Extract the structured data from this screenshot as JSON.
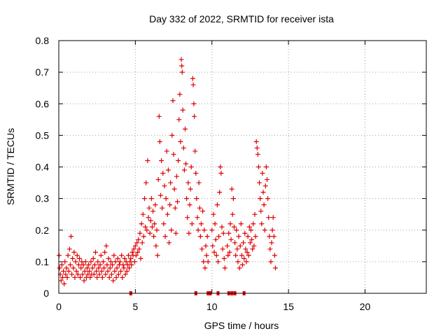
{
  "chart_data": {
    "type": "scatter",
    "title": "Day 332 of 2022, SRMTID for receiver ista",
    "xlabel": "GPS time / hours",
    "ylabel": "SRMTID / TECUs",
    "xlim": [
      0,
      24
    ],
    "ylim": [
      0,
      0.8
    ],
    "xticks": [
      0,
      5,
      10,
      15,
      20
    ],
    "yticks": [
      0,
      0.1,
      0.2,
      0.3,
      0.4,
      0.5,
      0.6,
      0.7,
      0.8
    ],
    "grid": true,
    "marker": "+",
    "color": "#e00000",
    "series": [
      {
        "name": "ista",
        "points": [
          [
            0.02,
            0.12
          ],
          [
            0.05,
            0.08
          ],
          [
            0.1,
            0.06
          ],
          [
            0.15,
            0.04
          ],
          [
            0.2,
            0.09
          ],
          [
            0.25,
            0.05
          ],
          [
            0.3,
            0.07
          ],
          [
            0.35,
            0.03
          ],
          [
            0.4,
            0.1
          ],
          [
            0.45,
            0.06
          ],
          [
            0.5,
            0.08
          ],
          [
            0.55,
            0.05
          ],
          [
            0.6,
            0.12
          ],
          [
            0.65,
            0.07
          ],
          [
            0.7,
            0.14
          ],
          [
            0.75,
            0.09
          ],
          [
            0.8,
            0.18
          ],
          [
            0.85,
            0.06
          ],
          [
            0.9,
            0.11
          ],
          [
            0.95,
            0.08
          ],
          [
            1.0,
            0.13
          ],
          [
            1.05,
            0.05
          ],
          [
            1.1,
            0.1
          ],
          [
            1.15,
            0.07
          ],
          [
            1.2,
            0.12
          ],
          [
            1.25,
            0.06
          ],
          [
            1.3,
            0.09
          ],
          [
            1.35,
            0.11
          ],
          [
            1.4,
            0.05
          ],
          [
            1.45,
            0.08
          ],
          [
            1.5,
            0.1
          ],
          [
            1.55,
            0.06
          ],
          [
            1.6,
            0.09
          ],
          [
            1.65,
            0.04
          ],
          [
            1.7,
            0.07
          ],
          [
            1.75,
            0.1
          ],
          [
            1.8,
            0.05
          ],
          [
            1.85,
            0.08
          ],
          [
            1.9,
            0.06
          ],
          [
            1.95,
            0.09
          ],
          [
            2.0,
            0.07
          ],
          [
            2.05,
            0.05
          ],
          [
            2.1,
            0.1
          ],
          [
            2.15,
            0.06
          ],
          [
            2.2,
            0.08
          ],
          [
            2.25,
            0.11
          ],
          [
            2.3,
            0.06
          ],
          [
            2.35,
            0.09
          ],
          [
            2.4,
            0.13
          ],
          [
            2.45,
            0.07
          ],
          [
            2.5,
            0.05
          ],
          [
            2.55,
            0.1
          ],
          [
            2.6,
            0.08
          ],
          [
            2.65,
            0.06
          ],
          [
            2.7,
            0.09
          ],
          [
            2.75,
            0.12
          ],
          [
            2.8,
            0.07
          ],
          [
            2.85,
            0.05
          ],
          [
            2.9,
            0.1
          ],
          [
            2.95,
            0.08
          ],
          [
            3.0,
            0.13
          ],
          [
            3.05,
            0.06
          ],
          [
            3.1,
            0.15
          ],
          [
            3.15,
            0.09
          ],
          [
            3.2,
            0.07
          ],
          [
            3.25,
            0.11
          ],
          [
            3.3,
            0.05
          ],
          [
            3.35,
            0.08
          ],
          [
            3.4,
            0.1
          ],
          [
            3.45,
            0.06
          ],
          [
            3.5,
            0.09
          ],
          [
            3.55,
            0.04
          ],
          [
            3.6,
            0.12
          ],
          [
            3.65,
            0.07
          ],
          [
            3.7,
            0.1
          ],
          [
            3.75,
            0.05
          ],
          [
            3.8,
            0.08
          ],
          [
            3.85,
            0.11
          ],
          [
            3.9,
            0.06
          ],
          [
            3.95,
            0.09
          ],
          [
            4.0,
            0.1
          ],
          [
            4.05,
            0.07
          ],
          [
            4.1,
            0.12
          ],
          [
            4.15,
            0.05
          ],
          [
            4.2,
            0.09
          ],
          [
            4.25,
            0.08
          ],
          [
            4.3,
            0.11
          ],
          [
            4.35,
            0.06
          ],
          [
            4.4,
            0.1
          ],
          [
            4.45,
            0.07
          ],
          [
            4.5,
            0.09
          ],
          [
            4.55,
            0.12
          ],
          [
            4.6,
            0.08
          ],
          [
            4.65,
            0.1
          ],
          [
            4.7,
            0.11
          ],
          [
            4.75,
            0.09
          ],
          [
            4.8,
            0.13
          ],
          [
            4.85,
            0.12
          ],
          [
            4.9,
            0.14
          ],
          [
            4.95,
            0.1
          ],
          [
            5.0,
            0.15
          ],
          [
            5.05,
            0.12
          ],
          [
            5.1,
            0.16
          ],
          [
            5.15,
            0.13
          ],
          [
            5.2,
            0.17
          ],
          [
            5.25,
            0.14
          ],
          [
            5.3,
            0.19
          ],
          [
            5.35,
            0.11
          ],
          [
            5.4,
            0.22
          ],
          [
            5.45,
            0.16
          ],
          [
            5.5,
            0.25
          ],
          [
            5.55,
            0.18
          ],
          [
            5.6,
            0.3
          ],
          [
            5.65,
            0.21
          ],
          [
            5.7,
            0.35
          ],
          [
            5.75,
            0.2
          ],
          [
            5.8,
            0.42
          ],
          [
            5.85,
            0.24
          ],
          [
            5.9,
            0.27
          ],
          [
            5.95,
            0.19
          ],
          [
            6.0,
            0.23
          ],
          [
            6.05,
            0.3
          ],
          [
            6.1,
            0.21
          ],
          [
            6.15,
            0.26
          ],
          [
            6.2,
            0.18
          ],
          [
            6.25,
            0.22
          ],
          [
            6.3,
            0.28
          ],
          [
            6.35,
            0.15
          ],
          [
            6.4,
            0.2
          ],
          [
            6.45,
            0.12
          ],
          [
            6.5,
            0.36
          ],
          [
            6.55,
            0.56
          ],
          [
            6.6,
            0.48
          ],
          [
            6.65,
            0.31
          ],
          [
            6.7,
            0.42
          ],
          [
            6.75,
            0.27
          ],
          [
            6.8,
            0.38
          ],
          [
            6.85,
            0.22
          ],
          [
            6.9,
            0.34
          ],
          [
            6.95,
            0.18
          ],
          [
            7.0,
            0.3
          ],
          [
            7.05,
            0.45
          ],
          [
            7.1,
            0.25
          ],
          [
            7.15,
            0.39
          ],
          [
            7.2,
            0.16
          ],
          [
            7.25,
            0.28
          ],
          [
            7.3,
            0.35
          ],
          [
            7.35,
            0.2
          ],
          [
            7.4,
            0.5
          ],
          [
            7.45,
            0.61
          ],
          [
            7.5,
            0.44
          ],
          [
            7.55,
            0.33
          ],
          [
            7.6,
            0.27
          ],
          [
            7.65,
            0.19
          ],
          [
            7.7,
            0.37
          ],
          [
            7.75,
            0.29
          ],
          [
            7.8,
            0.42
          ],
          [
            7.85,
            0.55
          ],
          [
            7.9,
            0.63
          ],
          [
            7.95,
            0.48
          ],
          [
            8.0,
            0.74
          ],
          [
            8.03,
            0.72
          ],
          [
            8.06,
            0.7
          ],
          [
            8.1,
            0.58
          ],
          [
            8.15,
            0.46
          ],
          [
            8.2,
            0.39
          ],
          [
            8.25,
            0.52
          ],
          [
            8.3,
            0.41
          ],
          [
            8.35,
            0.3
          ],
          [
            8.4,
            0.24
          ],
          [
            8.45,
            0.35
          ],
          [
            8.5,
            0.19
          ],
          [
            8.55,
            0.28
          ],
          [
            8.6,
            0.33
          ],
          [
            8.65,
            0.4
          ],
          [
            8.7,
            0.22
          ],
          [
            8.75,
            0.68
          ],
          [
            8.78,
            0.66
          ],
          [
            8.82,
            0.6
          ],
          [
            8.85,
            0.56
          ],
          [
            8.9,
            0.45
          ],
          [
            8.95,
            0.38
          ],
          [
            9.0,
            0.3
          ],
          [
            9.05,
            0.24
          ],
          [
            9.1,
            0.2
          ],
          [
            9.15,
            0.35
          ],
          [
            9.2,
            0.27
          ],
          [
            9.25,
            0.18
          ],
          [
            9.3,
            0.22
          ],
          [
            9.35,
            0.14
          ],
          [
            9.4,
            0.26
          ],
          [
            9.45,
            0.1
          ],
          [
            9.5,
            0.2
          ],
          [
            9.55,
            0.08
          ],
          [
            9.6,
            0.15
          ],
          [
            9.65,
            0.12
          ],
          [
            9.7,
            0.18
          ],
          [
            9.75,
            0.1
          ],
          [
            10.0,
            0.2
          ],
          [
            10.05,
            0.15
          ],
          [
            10.1,
            0.25
          ],
          [
            10.15,
            0.13
          ],
          [
            10.2,
            0.22
          ],
          [
            10.25,
            0.17
          ],
          [
            10.3,
            0.12
          ],
          [
            10.35,
            0.28
          ],
          [
            10.4,
            0.1
          ],
          [
            10.45,
            0.18
          ],
          [
            10.5,
            0.32
          ],
          [
            10.55,
            0.4
          ],
          [
            10.6,
            0.38
          ],
          [
            10.65,
            0.21
          ],
          [
            10.7,
            0.14
          ],
          [
            10.75,
            0.19
          ],
          [
            10.8,
            0.11
          ],
          [
            10.85,
            0.08
          ],
          [
            11.0,
            0.15
          ],
          [
            11.05,
            0.12
          ],
          [
            11.1,
            0.19
          ],
          [
            11.15,
            0.13
          ],
          [
            11.2,
            0.22
          ],
          [
            11.25,
            0.17
          ],
          [
            11.3,
            0.33
          ],
          [
            11.35,
            0.25
          ],
          [
            11.4,
            0.3
          ],
          [
            11.45,
            0.21
          ],
          [
            11.5,
            0.16
          ],
          [
            11.55,
            0.12
          ],
          [
            11.6,
            0.2
          ],
          [
            11.65,
            0.14
          ],
          [
            11.7,
            0.1
          ],
          [
            11.75,
            0.18
          ],
          [
            11.8,
            0.08
          ],
          [
            11.85,
            0.15
          ],
          [
            11.9,
            0.22
          ],
          [
            11.95,
            0.12
          ],
          [
            12.0,
            0.09
          ],
          [
            12.05,
            0.16
          ],
          [
            12.1,
            0.11
          ],
          [
            12.15,
            0.19
          ],
          [
            12.2,
            0.14
          ],
          [
            12.25,
            0.1
          ],
          [
            12.3,
            0.13
          ],
          [
            12.35,
            0.18
          ],
          [
            12.4,
            0.12
          ],
          [
            12.45,
            0.21
          ],
          [
            12.5,
            0.16
          ],
          [
            12.55,
            0.2
          ],
          [
            12.6,
            0.17
          ],
          [
            12.65,
            0.14
          ],
          [
            12.7,
            0.22
          ],
          [
            12.75,
            0.15
          ],
          [
            12.8,
            0.25
          ],
          [
            12.85,
            0.18
          ],
          [
            12.9,
            0.48
          ],
          [
            12.95,
            0.46
          ],
          [
            13.0,
            0.44
          ],
          [
            13.05,
            0.4
          ],
          [
            13.1,
            0.35
          ],
          [
            13.15,
            0.3
          ],
          [
            13.2,
            0.26
          ],
          [
            13.25,
            0.22
          ],
          [
            13.3,
            0.38
          ],
          [
            13.35,
            0.32
          ],
          [
            13.4,
            0.28
          ],
          [
            13.45,
            0.2
          ],
          [
            13.5,
            0.34
          ],
          [
            13.55,
            0.4
          ],
          [
            13.6,
            0.36
          ],
          [
            13.65,
            0.3
          ],
          [
            13.7,
            0.24
          ],
          [
            13.75,
            0.18
          ],
          [
            13.8,
            0.14
          ],
          [
            13.85,
            0.1
          ],
          [
            13.9,
            0.16
          ],
          [
            13.95,
            0.2
          ],
          [
            14.0,
            0.24
          ],
          [
            14.05,
            0.18
          ],
          [
            14.1,
            0.12
          ],
          [
            14.15,
            0.08
          ]
        ]
      }
    ],
    "zero_marks_x": [
      4.7,
      8.95,
      9.75,
      9.9,
      10.4,
      11.1,
      11.3,
      11.5,
      12.1
    ]
  }
}
